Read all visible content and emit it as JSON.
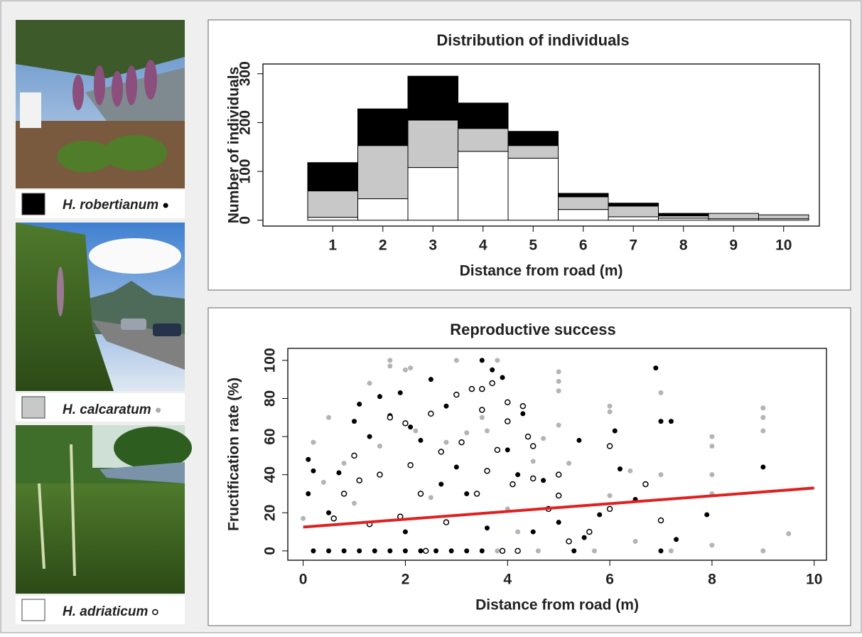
{
  "chart_data": [
    {
      "type": "bar",
      "stacked": true,
      "title": "Distribution of individuals",
      "xlabel": "Distance from road (m)",
      "ylabel": "Number of individuals",
      "categories": [
        "1",
        "2",
        "3",
        "4",
        "5",
        "6",
        "7",
        "8",
        "9",
        "10"
      ],
      "ylim": [
        -12,
        320
      ],
      "yticks": [
        0,
        100,
        200,
        300
      ],
      "series": [
        {
          "name": "H. robertianum",
          "color": "#000000",
          "marker": "filled",
          "values": [
            58,
            75,
            90,
            52,
            29,
            7,
            6,
            5,
            0,
            0
          ]
        },
        {
          "name": "H. calcaratum",
          "color": "#c8c8c8",
          "marker": "filled",
          "values": [
            54,
            109,
            97,
            47,
            26,
            26,
            22,
            5,
            11,
            8
          ]
        },
        {
          "name": "H. adriaticum",
          "color": "#ffffff",
          "marker": "open",
          "values": [
            6,
            44,
            108,
            141,
            127,
            22,
            7,
            4,
            3,
            3
          ]
        }
      ]
    },
    {
      "type": "scatter",
      "title": "Reproductive success",
      "xlabel": "Distance from road (m)",
      "ylabel": "Fructification rate (%)",
      "xlim": [
        -0.3,
        10.24
      ],
      "ylim": [
        -4.9,
        106.3
      ],
      "xticks": [
        0,
        2,
        4,
        6,
        8,
        10
      ],
      "yticks": [
        0,
        20,
        40,
        60,
        80,
        100
      ],
      "series": [
        {
          "color": "#000000",
          "marker": "filled",
          "x": [
            0.2,
            0.5,
            0.8,
            1.1,
            1.4,
            1.7,
            2,
            2.3,
            2.6,
            2.9,
            3.2,
            3.5,
            0.1,
            0.1,
            0.2,
            0.5,
            0.7,
            1,
            1.1,
            1.3,
            1.5,
            1.7,
            1.9,
            2,
            2.1,
            2.3,
            2.5,
            2.7,
            2.8,
            3,
            3.2,
            3.5,
            3.6,
            3.7,
            3.9,
            4,
            4.2,
            4.3,
            4.5,
            4.7,
            5,
            5.3,
            5.4,
            5.5,
            5.8,
            6.1,
            6.2,
            6.5,
            6.9,
            7,
            7.2,
            7.3,
            7.9,
            9,
            7
          ],
          "values": [
            0,
            0,
            0,
            0,
            0,
            0,
            0,
            0,
            0,
            0,
            0,
            0,
            48,
            30,
            42,
            20,
            41,
            68,
            77,
            60,
            81,
            71,
            83,
            10,
            65,
            58,
            90,
            35,
            76,
            44,
            30,
            100,
            12,
            95,
            91,
            53,
            40,
            72,
            10,
            37,
            15,
            0,
            58,
            7,
            19,
            63,
            43,
            27,
            96,
            68,
            68,
            6,
            19,
            44,
            0
          ]
        },
        {
          "color": "#b4b4b4",
          "marker": "filled",
          "x": [
            0,
            0.2,
            0.4,
            0.5,
            0.8,
            1,
            1.3,
            1.5,
            1.7,
            1.7,
            2,
            2.1,
            2.2,
            2.5,
            2.8,
            3,
            3.2,
            3.5,
            3.6,
            3.8,
            4,
            4.2,
            4.5,
            4.7,
            5,
            5,
            5,
            5,
            5.2,
            5.7,
            6,
            6,
            6,
            6.4,
            6.5,
            7,
            7,
            7.2,
            8,
            8,
            8,
            8,
            8,
            9,
            9,
            9,
            9,
            9.5,
            3.8,
            4.6
          ],
          "values": [
            17,
            57,
            36,
            70,
            46,
            25,
            88,
            55,
            100,
            97,
            95,
            96,
            63,
            28,
            57,
            100,
            62,
            70,
            63,
            100,
            22,
            10,
            47,
            59,
            94,
            89,
            84,
            66,
            46,
            0,
            76,
            73,
            29,
            42,
            5,
            83,
            40,
            0,
            60,
            55,
            40,
            30,
            3,
            75,
            70,
            63,
            0,
            9,
            0,
            0
          ]
        },
        {
          "color": "#000000",
          "marker": "open",
          "x": [
            0.6,
            0.8,
            1,
            1.1,
            1.3,
            1.5,
            1.7,
            1.9,
            2,
            2.1,
            2.3,
            2.5,
            2.7,
            2.8,
            3,
            3.1,
            3.3,
            3.4,
            3.5,
            3.5,
            3.6,
            3.7,
            3.8,
            4,
            4,
            4.1,
            4.3,
            4.4,
            4.5,
            4.5,
            4.8,
            5,
            5,
            5.2,
            5.6,
            6,
            6,
            6.7,
            7,
            3.9,
            4.2,
            2.4
          ],
          "values": [
            17,
            30,
            50,
            37,
            14,
            40,
            70,
            18,
            67,
            45,
            30,
            72,
            52,
            15,
            82,
            57,
            85,
            30,
            85,
            74,
            42,
            88,
            53,
            78,
            68,
            35,
            76,
            60,
            55,
            38,
            22,
            40,
            29,
            5,
            10,
            55,
            22,
            35,
            16,
            0,
            0,
            0
          ]
        }
      ],
      "trend": {
        "color": "#dd2222",
        "x": [
          0,
          10
        ],
        "values": [
          12.5,
          33
        ]
      }
    }
  ]
}
